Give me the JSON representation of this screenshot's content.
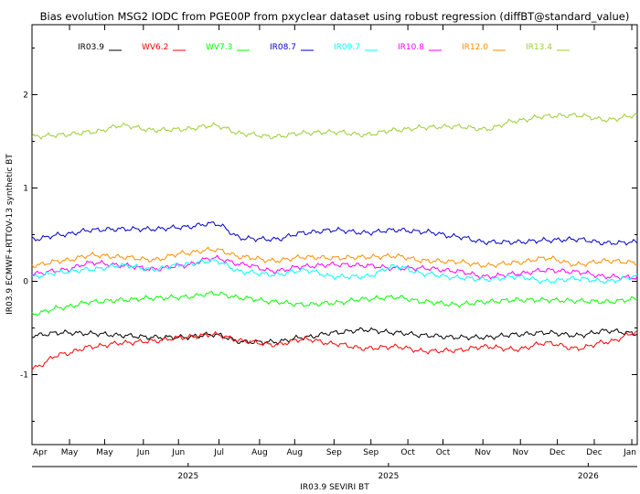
{
  "chart_data": {
    "type": "line",
    "title": "Bias evolution MSG2 IODC from PGE00P from pxyclear dataset using robust regression (diffBT@standard_value)",
    "xlabel": "IR03.9 SEVIRI BT",
    "ylabel": "IR03.9 ECMWF+RTTOV-13 synthetic BT",
    "xlim": [
      0,
      100
    ],
    "ylim": [
      -1.75,
      2.75
    ],
    "yticks": [
      "-1",
      "0",
      "1",
      "2"
    ],
    "month_ticks": [
      {
        "label": "Apr",
        "x": 0
      },
      {
        "label": "May",
        "x": 6.2
      },
      {
        "label": "May",
        "x": 12.0
      },
      {
        "label": "Jun",
        "x": 18.4
      },
      {
        "label": "Jun",
        "x": 24.2
      },
      {
        "label": "Jul",
        "x": 30.9
      },
      {
        "label": "Aug",
        "x": 37.6
      },
      {
        "label": "Aug",
        "x": 43.4
      },
      {
        "label": "Sep",
        "x": 49.9
      },
      {
        "label": "Sep",
        "x": 56.0
      },
      {
        "label": "Oct",
        "x": 62.1
      },
      {
        "label": "Oct",
        "x": 67.9
      },
      {
        "label": "Nov",
        "x": 74.5
      },
      {
        "label": "Nov",
        "x": 80.7
      },
      {
        "label": "Dec",
        "x": 86.8
      },
      {
        "label": "Dec",
        "x": 92.9
      },
      {
        "label": "Jan",
        "x": 99.1
      }
    ],
    "year_ticks": [
      {
        "label": "2025",
        "x": 25.8
      },
      {
        "label": "2025",
        "x": 58.9
      },
      {
        "label": "2026",
        "x": 91.9
      }
    ],
    "legend": [
      {
        "name": "IR03.9",
        "color": "#000000"
      },
      {
        "name": "WV6.2",
        "color": "#ff0000"
      },
      {
        "name": "WV7.3",
        "color": "#00ff00"
      },
      {
        "name": "IR08.7",
        "color": "#0000c8"
      },
      {
        "name": "IR09.7",
        "color": "#00ffff"
      },
      {
        "name": "IR10.8",
        "color": "#ff00ff"
      },
      {
        "name": "IR12.0",
        "color": "#ff8c00"
      },
      {
        "name": "IR13.4",
        "color": "#9acd32"
      }
    ],
    "x": [
      0,
      5,
      10,
      15,
      20,
      25,
      30,
      35,
      40,
      45,
      50,
      55,
      60,
      65,
      70,
      75,
      80,
      85,
      90,
      95,
      100
    ],
    "series": [
      {
        "name": "IR13.4",
        "color": "#9acd32",
        "values": [
          1.55,
          1.57,
          1.6,
          1.67,
          1.62,
          1.63,
          1.67,
          1.58,
          1.55,
          1.59,
          1.6,
          1.57,
          1.62,
          1.65,
          1.66,
          1.63,
          1.72,
          1.77,
          1.78,
          1.73,
          1.78
        ]
      },
      {
        "name": "IR08.7",
        "color": "#0000c8",
        "values": [
          0.45,
          0.5,
          0.55,
          0.56,
          0.56,
          0.58,
          0.62,
          0.46,
          0.45,
          0.52,
          0.55,
          0.52,
          0.55,
          0.53,
          0.48,
          0.42,
          0.42,
          0.44,
          0.45,
          0.41,
          0.42
        ]
      },
      {
        "name": "IR12.0",
        "color": "#ff8c00",
        "values": [
          0.17,
          0.22,
          0.28,
          0.26,
          0.23,
          0.3,
          0.34,
          0.26,
          0.22,
          0.26,
          0.25,
          0.26,
          0.27,
          0.22,
          0.21,
          0.17,
          0.2,
          0.25,
          0.18,
          0.22,
          0.2
        ]
      },
      {
        "name": "IR10.8",
        "color": "#ff00ff",
        "values": [
          0.08,
          0.12,
          0.2,
          0.17,
          0.13,
          0.17,
          0.25,
          0.18,
          0.11,
          0.16,
          0.18,
          0.17,
          0.14,
          0.14,
          0.11,
          0.05,
          0.08,
          0.12,
          0.1,
          0.05,
          0.04
        ]
      },
      {
        "name": "IR09.7",
        "color": "#00ffff",
        "values": [
          0.05,
          0.1,
          0.13,
          0.17,
          0.13,
          0.18,
          0.22,
          0.1,
          0.07,
          0.12,
          0.05,
          0.05,
          0.16,
          0.08,
          0.04,
          0.02,
          0.05,
          0.0,
          0.03,
          0.0,
          0.05
        ]
      },
      {
        "name": "WV7.3",
        "color": "#00ff00",
        "values": [
          -0.35,
          -0.28,
          -0.22,
          -0.2,
          -0.18,
          -0.17,
          -0.13,
          -0.18,
          -0.22,
          -0.25,
          -0.23,
          -0.19,
          -0.17,
          -0.22,
          -0.25,
          -0.22,
          -0.2,
          -0.2,
          -0.21,
          -0.22,
          -0.19
        ]
      },
      {
        "name": "IR03.9",
        "color": "#000000",
        "values": [
          -0.58,
          -0.55,
          -0.56,
          -0.58,
          -0.6,
          -0.6,
          -0.57,
          -0.65,
          -0.65,
          -0.6,
          -0.55,
          -0.52,
          -0.55,
          -0.58,
          -0.6,
          -0.6,
          -0.57,
          -0.55,
          -0.58,
          -0.53,
          -0.56
        ]
      },
      {
        "name": "WV6.2",
        "color": "#ff0000",
        "values": [
          -0.93,
          -0.78,
          -0.7,
          -0.66,
          -0.64,
          -0.6,
          -0.57,
          -0.64,
          -0.68,
          -0.62,
          -0.67,
          -0.72,
          -0.7,
          -0.75,
          -0.74,
          -0.7,
          -0.73,
          -0.66,
          -0.72,
          -0.65,
          -0.55
        ]
      }
    ],
    "grid": false,
    "legend_position": "top"
  }
}
